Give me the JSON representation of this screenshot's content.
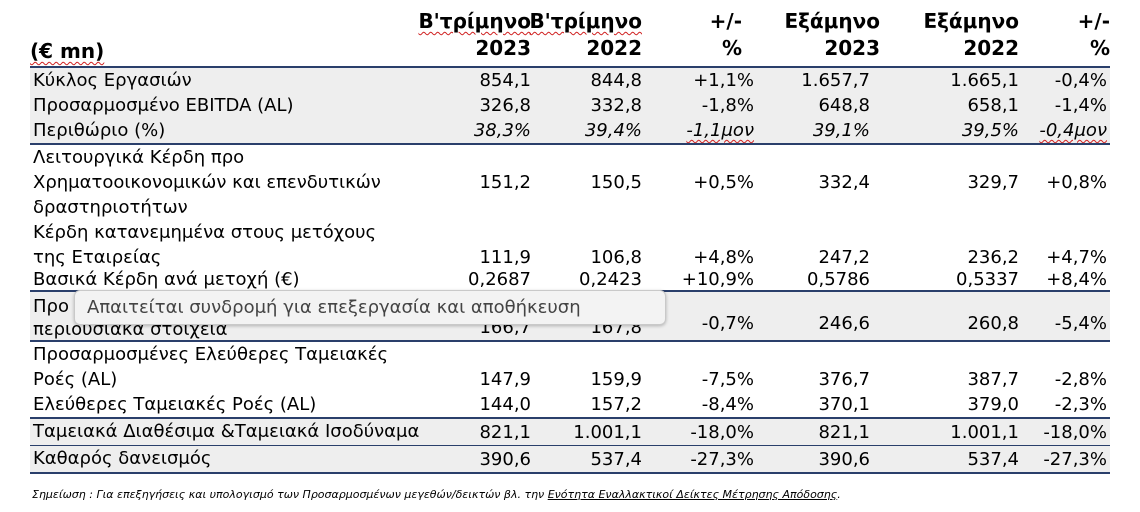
{
  "header": {
    "unit": "(€ mn)",
    "columns": [
      {
        "line1": "B'τρίμηνο",
        "line2": "2023"
      },
      {
        "line1": "B'τρίμηνο",
        "line2": "2022"
      },
      {
        "line1": "+/-",
        "line2": "%"
      },
      {
        "line1": "Εξάμηνο",
        "line2": "2023"
      },
      {
        "line1": "Εξάμηνο",
        "line2": "2022"
      },
      {
        "line1": "+/-",
        "line2": "%"
      }
    ]
  },
  "rows": [
    {
      "label": "Κύκλος Εργασιών",
      "values": [
        "854,1",
        "844,8",
        "+1,1%",
        "1.657,7",
        "1.665,1",
        "-0,4%"
      ]
    },
    {
      "label": "Προσαρμοσμένο EBITDA (AL)",
      "values": [
        "326,8",
        "332,8",
        "-1,8%",
        "648,8",
        "658,1",
        "-1,4%"
      ]
    },
    {
      "label": "Περιθώριο (%)",
      "values": [
        "38,3%",
        "39,4%",
        "-1,1μον",
        "39,1%",
        "39,5%",
        "-0,4μον"
      ]
    },
    {
      "label": "Λειτουργικά Κέρδη προ Χρηματοοικονομικών και επενδυτικών δραστηριοτήτων",
      "values": [
        "151,2",
        "150,5",
        "+0,5%",
        "332,4",
        "329,7",
        "+0,8%"
      ]
    },
    {
      "label": "Κέρδη κατανεμημένα στους μετόχους της Εταιρείας",
      "values": [
        "111,9",
        "106,8",
        "+4,8%",
        "247,2",
        "236,2",
        "+4,7%"
      ]
    },
    {
      "label": "Βασικά Κέρδη ανά μετοχή (€)",
      "values": [
        "0,2687",
        "0,2423",
        "+10,9%",
        "0,5786",
        "0,5337",
        "+8,4%"
      ]
    },
    {
      "label_line1": "Προ",
      "label_line2": "περιουσιακά στοιχεία",
      "values": [
        "166,7",
        "167,8",
        "-0,7%",
        "246,6",
        "260,8",
        "-5,4%"
      ]
    },
    {
      "label": "Προσαρμοσμένες Ελεύθερες Ταμειακές Ροές (AL)",
      "values": [
        "147,9",
        "159,9",
        "-7,5%",
        "376,7",
        "387,7",
        "-2,8%"
      ]
    },
    {
      "label": "Ελεύθερες Ταμειακές Ροές (AL)",
      "values": [
        "144,0",
        "157,2",
        "-8,4%",
        "370,1",
        "379,0",
        "-2,3%"
      ]
    },
    {
      "label": "Ταμειακά Διαθέσιμα &Ταμειακά Ισοδύναμα",
      "values": [
        "821,1",
        "1.001,1",
        "-18,0%",
        "821,1",
        "1.001,1",
        "-18,0%"
      ]
    },
    {
      "label": "Καθαρός δανεισμός",
      "values": [
        "390,6",
        "537,4",
        "-27,3%",
        "390,6",
        "537,4",
        "-27,3%"
      ]
    }
  ],
  "tooltip": "Απαιτείται συνδρομή για επεξεργασία και αποθήκευση",
  "note": {
    "prefix": "Σημείωση : Για επεξηγήσεις και υπολογισμό των Προσαρμοσμένων μεγεθών/δεικτών βλ. την ",
    "link": "Ενότητα Εναλλακτικοί Δείκτες Μέτρησης Απόδοσης",
    "suffix": "."
  }
}
